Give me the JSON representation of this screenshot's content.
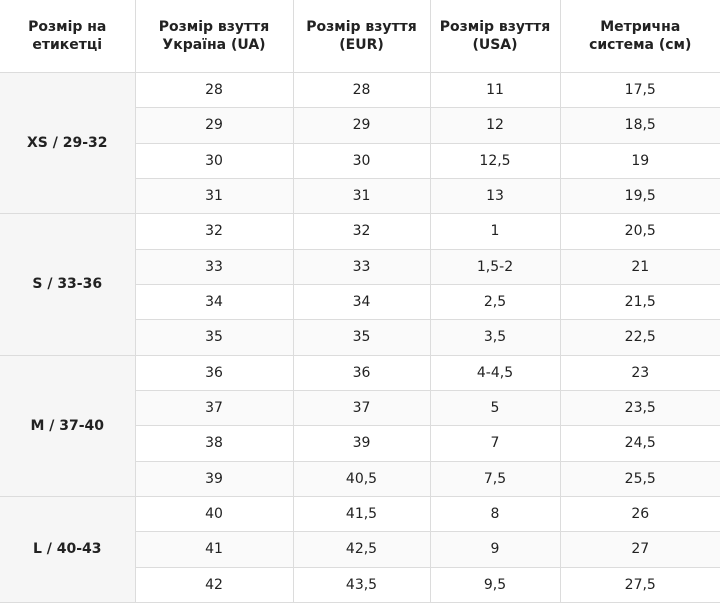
{
  "table": {
    "header": [
      "Розмір на етикетці",
      "Розмір взуття Україна (UA)",
      "Розмір взуття (EUR)",
      "Розмір взуття (USA)",
      "Метрична система (см)"
    ],
    "groups": [
      {
        "label": "XS / 29-32",
        "rows": [
          [
            "28",
            "28",
            "11",
            "17,5"
          ],
          [
            "29",
            "29",
            "12",
            "18,5"
          ],
          [
            "30",
            "30",
            "12,5",
            "19"
          ],
          [
            "31",
            "31",
            "13",
            "19,5"
          ]
        ]
      },
      {
        "label": "S / 33-36",
        "rows": [
          [
            "32",
            "32",
            "1",
            "20,5"
          ],
          [
            "33",
            "33",
            "1,5-2",
            "21"
          ],
          [
            "34",
            "34",
            "2,5",
            "21,5"
          ],
          [
            "35",
            "35",
            "3,5",
            "22,5"
          ]
        ]
      },
      {
        "label": "M / 37-40",
        "rows": [
          [
            "36",
            "36",
            "4-4,5",
            "23"
          ],
          [
            "37",
            "37",
            "5",
            "23,5"
          ],
          [
            "38",
            "39",
            "7",
            "24,5"
          ],
          [
            "39",
            "40,5",
            "7,5",
            "25,5"
          ]
        ]
      },
      {
        "label": "L / 40-43",
        "rows": [
          [
            "40",
            "41,5",
            "8",
            "26"
          ],
          [
            "41",
            "42,5",
            "9",
            "27"
          ],
          [
            "42",
            "43,5",
            "9,5",
            "27,5"
          ]
        ]
      }
    ]
  }
}
